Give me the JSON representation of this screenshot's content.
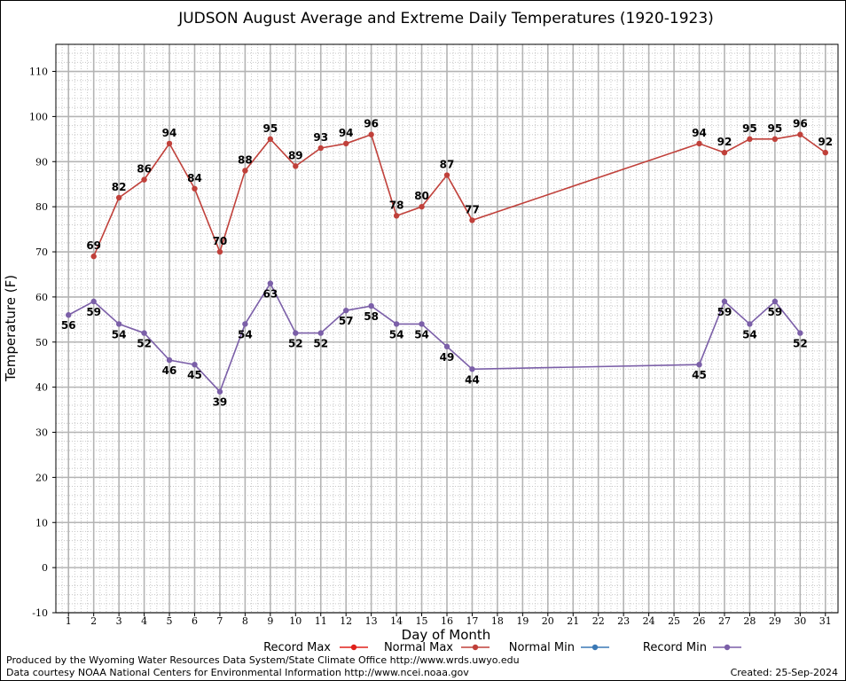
{
  "chart_data": {
    "type": "line",
    "title": "JUDSON August Average and Extreme Daily Temperatures (1920-1923)",
    "xlabel": "Day of Month",
    "ylabel": "Temperature (F)",
    "xlim": [
      0.5,
      31.5
    ],
    "ylim": [
      -10,
      116
    ],
    "x_ticks": [
      1,
      2,
      3,
      4,
      5,
      6,
      7,
      8,
      9,
      10,
      11,
      12,
      13,
      14,
      15,
      16,
      17,
      18,
      19,
      20,
      21,
      22,
      23,
      24,
      25,
      26,
      27,
      28,
      29,
      30,
      31
    ],
    "y_ticks": [
      -10,
      0,
      10,
      20,
      30,
      40,
      50,
      60,
      70,
      80,
      90,
      100,
      110
    ],
    "grid": true,
    "series": [
      {
        "name": "Record Max",
        "color": "#c0403a",
        "points": [
          [
            2,
            69
          ],
          [
            3,
            82
          ],
          [
            4,
            86
          ],
          [
            5,
            94
          ],
          [
            6,
            84
          ],
          [
            7,
            70
          ],
          [
            8,
            88
          ],
          [
            9,
            95
          ],
          [
            10,
            89
          ],
          [
            11,
            93
          ],
          [
            12,
            94
          ],
          [
            13,
            96
          ],
          [
            14,
            78
          ],
          [
            15,
            80
          ],
          [
            16,
            87
          ],
          [
            17,
            77
          ],
          [
            26,
            94
          ],
          [
            27,
            92
          ],
          [
            28,
            95
          ],
          [
            29,
            95
          ],
          [
            30,
            96
          ],
          [
            31,
            92
          ]
        ]
      },
      {
        "name": "Record Min",
        "color": "#7b5fa8",
        "points": [
          [
            1,
            56
          ],
          [
            2,
            59
          ],
          [
            3,
            54
          ],
          [
            4,
            52
          ],
          [
            5,
            46
          ],
          [
            6,
            45
          ],
          [
            7,
            39
          ],
          [
            8,
            54
          ],
          [
            9,
            63
          ],
          [
            10,
            52
          ],
          [
            11,
            52
          ],
          [
            12,
            57
          ],
          [
            13,
            58
          ],
          [
            14,
            54
          ],
          [
            15,
            54
          ],
          [
            16,
            49
          ],
          [
            17,
            44
          ],
          [
            26,
            45
          ],
          [
            27,
            59
          ],
          [
            28,
            54
          ],
          [
            29,
            59
          ],
          [
            30,
            52
          ]
        ]
      }
    ],
    "legend": {
      "placement": "bottom",
      "entries": [
        {
          "name": "Record Max",
          "color": "#e0201b"
        },
        {
          "name": "Normal Max",
          "color": "#c0403a"
        },
        {
          "name": "Normal Min",
          "color": "#3a78b5"
        },
        {
          "name": "Record Min",
          "color": "#7b5fa8"
        }
      ]
    }
  },
  "footer": {
    "produced_by": "Produced by the Wyoming Water Resources Data System/State Climate Office http://www.wrds.uwyo.edu",
    "data_courtesy": "Data courtesy NOAA National Centers for Environmental Information http://www.ncei.noaa.gov",
    "created": "Created:  25-Sep-2024"
  }
}
